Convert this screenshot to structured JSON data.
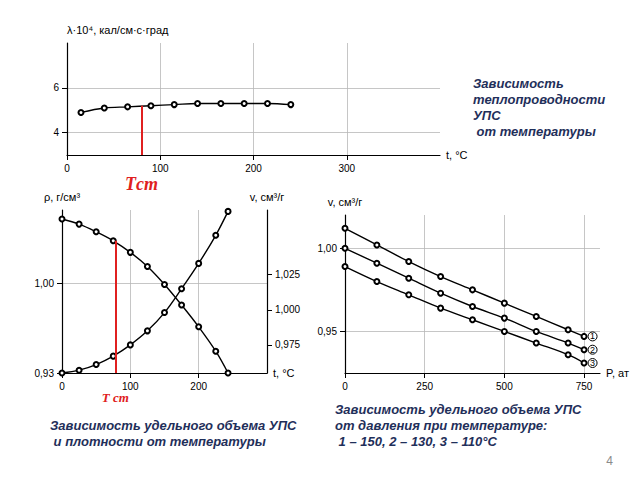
{
  "chart_data": [
    {
      "type": "line",
      "title": "Зависимость\nтеплопроводности\nУПС\n от температуры",
      "x_label": "t, °C",
      "y_label": "λ·10⁴, кал/см·с·град",
      "x": [
        15,
        40,
        65,
        90,
        115,
        140,
        165,
        190,
        215,
        240
      ],
      "values": [
        4.9,
        5.1,
        5.15,
        5.2,
        5.25,
        5.3,
        5.3,
        5.3,
        5.3,
        5.25
      ],
      "color": "#000000",
      "marker": "circle",
      "xlim": [
        0,
        400
      ],
      "xticks": [
        0,
        100,
        200,
        300
      ],
      "ylim": [
        3,
        8
      ],
      "yticks": [
        4,
        6
      ],
      "grid": true,
      "annotations": [
        {
          "text": "Tст",
          "x": 80,
          "y": 5.2,
          "color": "#e02020"
        }
      ]
    },
    {
      "type": "line",
      "title": "Зависимость удельного объема УПС\n и плотности от температуры",
      "x_label": "t, °C",
      "y_label": "ρ, г/см³",
      "y2_label": "v, см³/г",
      "x": [
        0,
        25,
        50,
        75,
        100,
        125,
        150,
        175,
        200,
        225,
        243
      ],
      "series": [
        {
          "color": "#000000",
          "marker": "circle",
          "values": [
            1.05,
            1.046,
            1.04,
            1.033,
            1.024,
            1.013,
            0.999,
            0.983,
            0.966,
            0.947,
            0.93
          ]
        },
        {
          "color": "#000000",
          "marker": "circle",
          "axis": "y2",
          "values": [
            0.955,
            0.957,
            0.961,
            0.967,
            0.975,
            0.985,
            0.998,
            1.015,
            1.033,
            1.053,
            1.07
          ]
        }
      ],
      "xlim": [
        0,
        300
      ],
      "xticks": [
        0,
        100,
        200
      ],
      "ylim": [
        0.93,
        1.057
      ],
      "yticks": [
        {
          "value": 0.93,
          "label": "0,93"
        },
        {
          "value": 1.0,
          "label": "1,00"
        }
      ],
      "y2lim": [
        0.955,
        1.071
      ],
      "y2ticks": [
        {
          "value": 0.975,
          "label": "0,975"
        },
        {
          "value": 1.0,
          "label": "1,000"
        },
        {
          "value": 1.025,
          "label": "1,025"
        }
      ],
      "grid": true,
      "annotations": [
        {
          "text": "Т ст",
          "x": 78,
          "y": 1.033,
          "color": "#e02020"
        }
      ]
    },
    {
      "type": "line",
      "title": "Зависимость удельного объема УПС\nот давления при температуре:\n 1 – 150, 2 – 130, 3 – 110°С",
      "x_label": "P, ат",
      "y_label": "v, см³/г",
      "x": [
        0,
        100,
        200,
        300,
        400,
        500,
        600,
        700,
        750
      ],
      "series": [
        {
          "name": "1",
          "color": "#000000",
          "marker": "circle",
          "values": [
            1.012,
            1.002,
            0.992,
            0.983,
            0.975,
            0.967,
            0.959,
            0.951,
            0.947
          ]
        },
        {
          "name": "2",
          "color": "#000000",
          "marker": "circle",
          "values": [
            1.0,
            0.991,
            0.982,
            0.973,
            0.965,
            0.958,
            0.95,
            0.943,
            0.939
          ]
        },
        {
          "name": "3",
          "color": "#000000",
          "marker": "circle",
          "values": [
            0.989,
            0.98,
            0.972,
            0.964,
            0.957,
            0.95,
            0.943,
            0.936,
            0.931
          ]
        }
      ],
      "xlim": [
        0,
        800
      ],
      "xticks": [
        0,
        250,
        500,
        750
      ],
      "ylim": [
        0.925,
        1.02
      ],
      "yticks": [
        {
          "value": 0.95,
          "label": "0,95"
        },
        {
          "value": 1.0,
          "label": "1,00"
        }
      ],
      "grid": true
    }
  ],
  "footer": "4"
}
